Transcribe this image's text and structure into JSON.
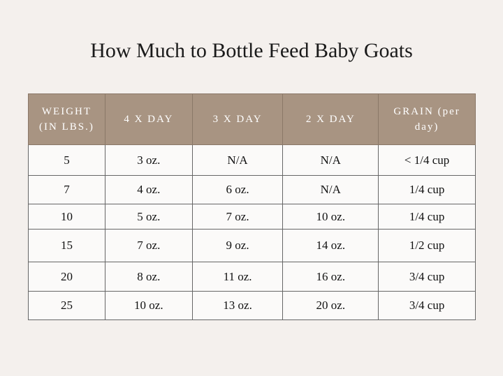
{
  "header": {
    "title": "How Much to Bottle Feed Baby Goats"
  },
  "table": {
    "columns": [
      "WEIGHT (IN LBS.)",
      "4 X DAY",
      "3 X DAY",
      "2 X DAY",
      "GRAIN (per day)"
    ],
    "rows": [
      [
        "5",
        "3 oz.",
        "N/A",
        "N/A",
        "< 1/4 cup"
      ],
      [
        "7",
        "4 oz.",
        "6 oz.",
        "N/A",
        "1/4 cup"
      ],
      [
        "10",
        "5 oz.",
        "7 oz.",
        "10 oz.",
        "1/4 cup"
      ],
      [
        "15",
        "7 oz.",
        "9 oz.",
        "14 oz.",
        "1/2 cup"
      ],
      [
        "20",
        "8 oz.",
        "11 oz.",
        "16 oz.",
        "3/4 cup"
      ],
      [
        "25",
        "10 oz.",
        "13 oz.",
        "20 oz.",
        "3/4 cup"
      ]
    ]
  }
}
